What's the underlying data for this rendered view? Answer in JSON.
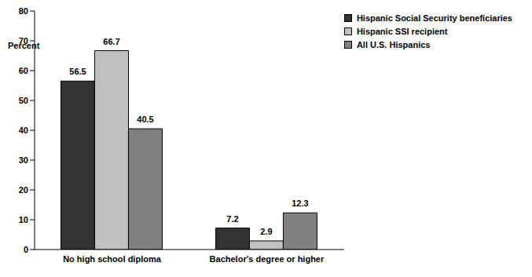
{
  "chart_data": {
    "type": "bar",
    "ylabel": "Percent",
    "categories": [
      "No high school diploma",
      "Bachelor's degree or higher"
    ],
    "series": [
      {
        "name": "Hispanic Social Security beneficiaries",
        "color": "#333333",
        "values": [
          56.5,
          7.2
        ]
      },
      {
        "name": "Hispanic SSI recipient",
        "color": "#c0c0c0",
        "values": [
          66.7,
          2.9
        ]
      },
      {
        "name": "All U.S. Hispanics",
        "color": "#808080",
        "values": [
          40.5,
          12.3
        ]
      }
    ],
    "ylim": [
      0,
      80
    ],
    "yticks": [
      0,
      10,
      20,
      30,
      40,
      50,
      60,
      70,
      80
    ],
    "grid": false,
    "legend": "top-right",
    "data_labels": true
  }
}
